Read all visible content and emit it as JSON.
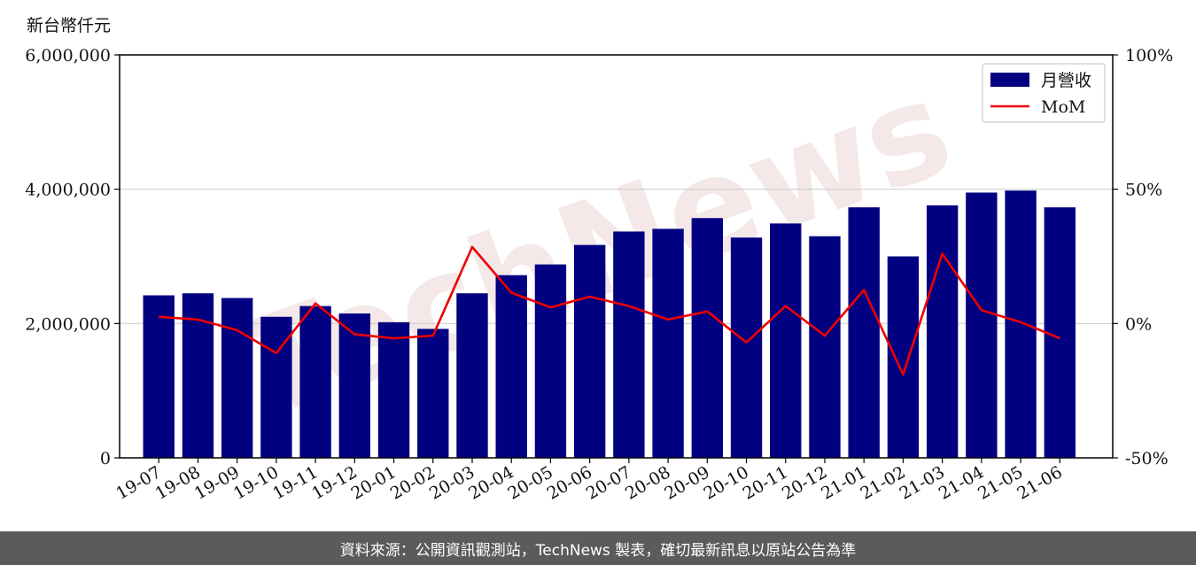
{
  "unit_label": "新台幣仟元",
  "footer_text": "資料來源：公開資訊觀測站，TechNews 製表，確切最新訊息以原站公告為準",
  "watermark": "TechNews",
  "chart_data": {
    "type": "bar",
    "categories": [
      "19-07",
      "19-08",
      "19-09",
      "19-10",
      "19-11",
      "19-12",
      "20-01",
      "20-02",
      "20-03",
      "20-04",
      "20-05",
      "20-06",
      "20-07",
      "20-08",
      "20-09",
      "20-10",
      "20-11",
      "20-12",
      "21-01",
      "21-02",
      "21-03",
      "21-04",
      "21-05",
      "21-06"
    ],
    "series": [
      {
        "name": "月營收",
        "type": "bar",
        "axis": "left",
        "color": "#000080",
        "values": [
          2420000,
          2450000,
          2380000,
          2100000,
          2260000,
          2150000,
          2020000,
          1920000,
          2450000,
          2720000,
          2880000,
          3170000,
          3370000,
          3410000,
          3570000,
          3280000,
          3490000,
          3300000,
          3730000,
          3000000,
          3760000,
          3950000,
          3980000,
          3730000
        ]
      },
      {
        "name": "MoM",
        "type": "line",
        "axis": "right",
        "color": "#ee0000",
        "values": [
          2.5,
          1.5,
          -2.5,
          -11,
          7.5,
          -4,
          -5.5,
          -4.5,
          28.5,
          11.5,
          6,
          10,
          6.5,
          1.5,
          4.5,
          -7,
          6.5,
          -4.5,
          12.5,
          -19,
          26,
          5,
          0.5,
          -5.5
        ]
      }
    ],
    "y_left": {
      "ylim": [
        0,
        6000000
      ],
      "ticks": [
        0,
        2000000,
        4000000,
        6000000
      ],
      "tick_labels": [
        "0",
        "2,000,000",
        "4,000,000",
        "6,000,000"
      ]
    },
    "y_right": {
      "ylim": [
        -50,
        100
      ],
      "ticks": [
        -50,
        0,
        50,
        100
      ],
      "tick_labels": [
        "-50%",
        "0%",
        "50%",
        "100%"
      ]
    },
    "grid": "horizontal",
    "legend_position": "top-right"
  }
}
